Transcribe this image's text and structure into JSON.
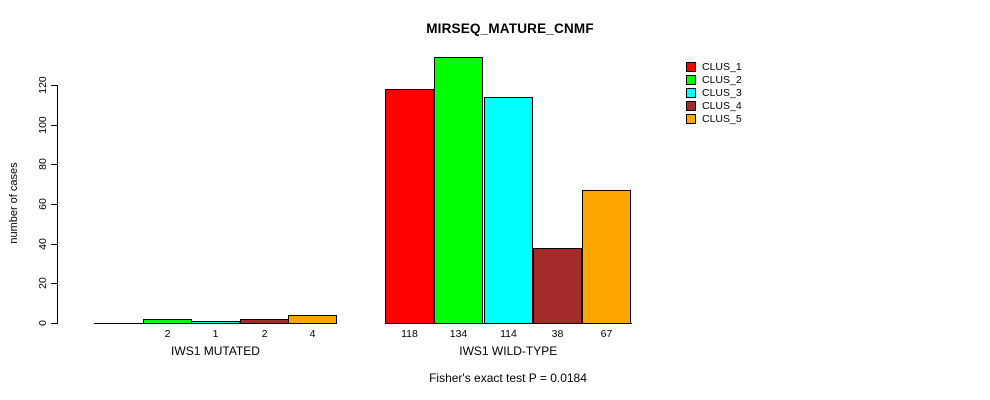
{
  "chart_data": {
    "type": "bar",
    "title": "MIRSEQ_MATURE_CNMF",
    "ylabel": "number of cases",
    "ylim": [
      0,
      120
    ],
    "yticks": [
      0,
      20,
      40,
      60,
      80,
      100,
      120
    ],
    "grid": false,
    "legend_position": "right",
    "legend": [
      "CLUS_1",
      "CLUS_2",
      "CLUS_3",
      "CLUS_4",
      "CLUS_5"
    ],
    "colors": [
      "#FF0000",
      "#00FF00",
      "#00FFFF",
      "#A52A2A",
      "#FFA500"
    ],
    "categories": [
      "IWS1 MUTATED",
      "IWS1 WILD-TYPE"
    ],
    "groups": [
      {
        "label": "IWS1 MUTATED",
        "values": [
          0,
          2,
          1,
          2,
          4
        ],
        "bar_labels": [
          "",
          "2",
          "1",
          "2",
          "4"
        ]
      },
      {
        "label": "IWS1 WILD-TYPE",
        "values": [
          118,
          134,
          114,
          38,
          67
        ],
        "bar_labels": [
          "118",
          "134",
          "114",
          "38",
          "67"
        ]
      }
    ],
    "annotation": "Fisher's exact test P = 0.0184"
  }
}
